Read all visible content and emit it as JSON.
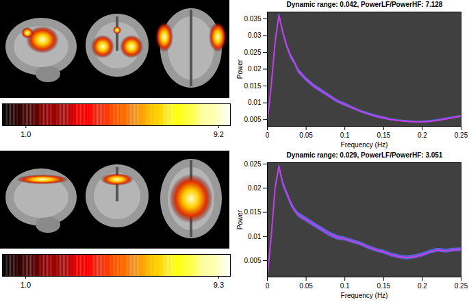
{
  "chart_data": [
    {
      "type": "line",
      "title": "Dynamic range: 0.042, PowerLF/PowerHF: 7.128",
      "x_label": "Frequency (Hz)",
      "y_label": "Power",
      "x": [
        0,
        0.005,
        0.01,
        0.015,
        0.02,
        0.025,
        0.03,
        0.035,
        0.04,
        0.05,
        0.06,
        0.07,
        0.08,
        0.09,
        0.1,
        0.11,
        0.12,
        0.13,
        0.14,
        0.15,
        0.16,
        0.17,
        0.18,
        0.19,
        0.2,
        0.21,
        0.22,
        0.23,
        0.24,
        0.25
      ],
      "series": [
        {
          "color": "#c03fe0",
          "values": [
            0.0045,
            0.015,
            0.028,
            0.036,
            0.031,
            0.027,
            0.024,
            0.022,
            0.0195,
            0.017,
            0.015,
            0.0135,
            0.012,
            0.0105,
            0.0095,
            0.0085,
            0.0075,
            0.0067,
            0.006,
            0.0055,
            0.005,
            0.0047,
            0.0045,
            0.0043,
            0.0043,
            0.0045,
            0.0048,
            0.0052,
            0.0056,
            0.006
          ],
          "error": [
            0.0004,
            0.0007,
            0.0008,
            0.0008,
            0.0008,
            0.0008,
            0.0008,
            0.0007,
            0.0007,
            0.0006,
            0.0006,
            0.0006,
            0.0005,
            0.0005,
            0.0005,
            0.0004,
            0.0004,
            0.0004,
            0.0004,
            0.0004,
            0.0003,
            0.0003,
            0.0003,
            0.0003,
            0.0003,
            0.0003,
            0.0003,
            0.0003,
            0.0003,
            0.0003
          ]
        }
      ],
      "xlim": [
        0,
        0.25
      ],
      "xticks": [
        0,
        0.05,
        0.1,
        0.15,
        0.2,
        0.25
      ],
      "ylim": [
        0.003,
        0.037
      ],
      "yticks": [
        0.005,
        0.01,
        0.015,
        0.02,
        0.025,
        0.03,
        0.035
      ],
      "colorbar": {
        "range": [
          0,
          9.7
        ],
        "ticks": [
          {
            "value": 1,
            "label": "1.0"
          },
          {
            "value": 9.2,
            "label": "9.2"
          }
        ]
      }
    },
    {
      "type": "line",
      "title": "Dynamic range: 0.029, PowerLF/PowerHF: 3.051",
      "x_label": "Frequency (Hz)",
      "y_label": "Power",
      "x": [
        0,
        0.005,
        0.01,
        0.015,
        0.02,
        0.025,
        0.03,
        0.035,
        0.04,
        0.05,
        0.06,
        0.07,
        0.08,
        0.09,
        0.1,
        0.11,
        0.12,
        0.13,
        0.14,
        0.15,
        0.16,
        0.17,
        0.18,
        0.19,
        0.2,
        0.21,
        0.22,
        0.23,
        0.24,
        0.25
      ],
      "series": [
        {
          "color": "#c03fe0",
          "values": [
            0.0016,
            0.01,
            0.02,
            0.0245,
            0.021,
            0.019,
            0.017,
            0.0155,
            0.0145,
            0.0135,
            0.0125,
            0.0115,
            0.0105,
            0.0098,
            0.0095,
            0.009,
            0.0085,
            0.0078,
            0.0072,
            0.0068,
            0.0062,
            0.0058,
            0.0056,
            0.0058,
            0.0062,
            0.0068,
            0.0072,
            0.007,
            0.0072,
            0.0073
          ],
          "error": [
            0.0003,
            0.0005,
            0.0006,
            0.0006,
            0.0006,
            0.0006,
            0.0006,
            0.0005,
            0.0005,
            0.0005,
            0.0005,
            0.0005,
            0.0005,
            0.0005,
            0.0004,
            0.0004,
            0.0004,
            0.0004,
            0.0004,
            0.0004,
            0.0004,
            0.0004,
            0.0004,
            0.0004,
            0.0004,
            0.0004,
            0.0004,
            0.0004,
            0.0004,
            0.0004
          ]
        }
      ],
      "xlim": [
        0,
        0.25
      ],
      "xticks": [
        0,
        0.05,
        0.1,
        0.15,
        0.2,
        0.25
      ],
      "ylim": [
        0.0016,
        0.0253
      ],
      "yticks": [
        0.005,
        0.01,
        0.015,
        0.02,
        0.025
      ],
      "colorbar": {
        "range": [
          0,
          9.8
        ],
        "ticks": [
          {
            "value": 1,
            "label": "1.0"
          },
          {
            "value": 9.3,
            "label": "9.3"
          }
        ]
      }
    }
  ]
}
